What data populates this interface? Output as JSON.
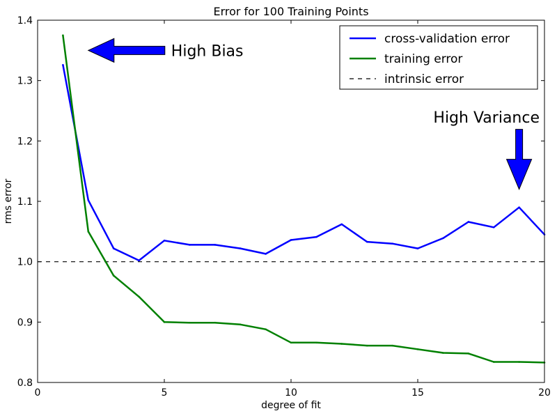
{
  "chart_data": {
    "type": "line",
    "title": "Error for 100 Training Points",
    "xlabel": "degree of fit",
    "ylabel": "rms error",
    "xlim": [
      0,
      20
    ],
    "ylim": [
      0.8,
      1.4
    ],
    "xticks": [
      0,
      5,
      10,
      15,
      20
    ],
    "yticks": [
      0.8,
      0.9,
      1.0,
      1.1,
      1.2,
      1.3,
      1.4
    ],
    "x": [
      1,
      2,
      3,
      4,
      5,
      6,
      7,
      8,
      9,
      10,
      11,
      12,
      13,
      14,
      15,
      16,
      17,
      18,
      19,
      20
    ],
    "series": [
      {
        "name": "cross-validation error",
        "color": "#0000ff",
        "values": [
          1.326,
          1.102,
          1.022,
          1.002,
          1.035,
          1.028,
          1.028,
          1.022,
          1.013,
          1.036,
          1.041,
          1.062,
          1.033,
          1.03,
          1.022,
          1.039,
          1.066,
          1.057,
          1.09,
          1.045
        ]
      },
      {
        "name": "training error",
        "color": "#008000",
        "values": [
          1.375,
          1.05,
          0.977,
          0.942,
          0.9,
          0.899,
          0.899,
          0.896,
          0.888,
          0.866,
          0.866,
          0.864,
          0.861,
          0.861,
          0.855,
          0.849,
          0.848,
          0.834,
          0.834,
          0.833
        ]
      }
    ],
    "reference_line": {
      "name": "intrinsic error",
      "y": 1.0,
      "color": "#000000",
      "style": "dashed"
    },
    "legend": "top-right",
    "annotations": [
      {
        "text": "High Bias",
        "color": "#0000ff",
        "direction": "left",
        "arrow_tip": [
          2.0,
          1.35
        ]
      },
      {
        "text": "High Variance",
        "color": "#0000ff",
        "direction": "down",
        "arrow_tip": [
          19.0,
          1.12
        ]
      }
    ],
    "grid": false
  }
}
